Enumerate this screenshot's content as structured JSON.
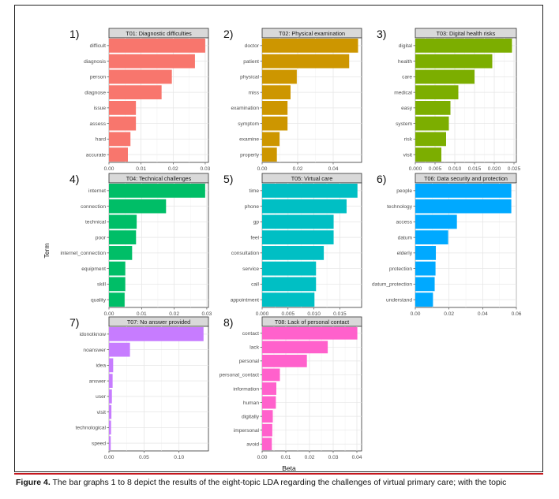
{
  "axis": {
    "x_title": "Beta",
    "y_title": "Term"
  },
  "caption": {
    "label": "Figure 4.",
    "text": "The bar graphs 1 to 8 depict the results of the eight-topic LDA regarding the challenges of virtual primary care; with the topic"
  },
  "chart_data": [
    {
      "type": "bar",
      "orientation": "horizontal",
      "panel_number": "1)",
      "title": "T01: Diagnostic difficulties",
      "color": "#F8766D",
      "categories": [
        "difficult",
        "diagnosis",
        "person",
        "diagnose",
        "issue",
        "assess",
        "hard",
        "accurate"
      ],
      "values": [
        0.03,
        0.0268,
        0.0196,
        0.0164,
        0.0084,
        0.0084,
        0.0067,
        0.0059
      ],
      "xlim": [
        0,
        0.031
      ],
      "ticks": [
        0,
        0.01,
        0.02,
        0.03
      ],
      "tick_labels": [
        "0.00",
        "0.01",
        "0.02",
        "0.03"
      ],
      "grid": true
    },
    {
      "type": "bar",
      "orientation": "horizontal",
      "panel_number": "2)",
      "title": "T02: Physical examination",
      "color": "#CD9600",
      "categories": [
        "doctor",
        "patient",
        "physical",
        "miss",
        "examination",
        "symptom",
        "examine",
        "properly"
      ],
      "values": [
        0.054,
        0.049,
        0.0195,
        0.016,
        0.0143,
        0.0143,
        0.0098,
        0.0083
      ],
      "xlim": [
        0,
        0.056
      ],
      "ticks": [
        0,
        0.02,
        0.04
      ],
      "tick_labels": [
        "0.00",
        "0.02",
        "0.04"
      ],
      "grid": true
    },
    {
      "type": "bar",
      "orientation": "horizontal",
      "panel_number": "3)",
      "title": "T03: Digital health risks",
      "color": "#7CAE00",
      "categories": [
        "digital",
        "health",
        "care",
        "medical",
        "easy",
        "system",
        "risk",
        "visit"
      ],
      "values": [
        0.0245,
        0.0195,
        0.015,
        0.0109,
        0.0089,
        0.0085,
        0.0078,
        0.0066
      ],
      "xlim": [
        0,
        0.0256
      ],
      "ticks": [
        0,
        0.005,
        0.01,
        0.015,
        0.02,
        0.025
      ],
      "tick_labels": [
        "0.000",
        "0.005",
        "0.010",
        "0.015",
        "0.020",
        "0.025"
      ],
      "grid": true
    },
    {
      "type": "bar",
      "orientation": "horizontal",
      "panel_number": "4)",
      "title": "T04: Technical challenges",
      "color": "#00BE67",
      "categories": [
        "internet",
        "connection",
        "technical",
        "poor",
        "internet_connection",
        "equipment",
        "skill",
        "quality"
      ],
      "values": [
        0.0295,
        0.0175,
        0.0085,
        0.0083,
        0.0071,
        0.005,
        0.005,
        0.0048
      ],
      "xlim": [
        0,
        0.0305
      ],
      "ticks": [
        0,
        0.01,
        0.02,
        0.03
      ],
      "tick_labels": [
        "0.00",
        "0.01",
        "0.02",
        "0.03"
      ],
      "grid": true
    },
    {
      "type": "bar",
      "orientation": "horizontal",
      "panel_number": "5)",
      "title": "T05: Virtual care",
      "color": "#00BFC4",
      "categories": [
        "time",
        "phone",
        "gp",
        "feel",
        "consultation",
        "service",
        "call",
        "appointment"
      ],
      "values": [
        0.0184,
        0.0163,
        0.0138,
        0.0138,
        0.0119,
        0.0104,
        0.0104,
        0.0101
      ],
      "xlim": [
        0,
        0.0192
      ],
      "ticks": [
        0,
        0.005,
        0.01,
        0.015
      ],
      "tick_labels": [
        "0.000",
        "0.005",
        "0.010",
        "0.015"
      ],
      "grid": true
    },
    {
      "type": "bar",
      "orientation": "horizontal",
      "panel_number": "6)",
      "title": "T06: Data security and protection",
      "color": "#00A9FF",
      "categories": [
        "people",
        "technology",
        "access",
        "datum",
        "elderly",
        "protection",
        "datum_protection",
        "understand"
      ],
      "values": [
        0.057,
        0.057,
        0.0247,
        0.0195,
        0.0122,
        0.012,
        0.0115,
        0.0105
      ],
      "xlim": [
        0,
        0.06
      ],
      "ticks": [
        0,
        0.02,
        0.04,
        0.06
      ],
      "tick_labels": [
        "0.00",
        "0.02",
        "0.04",
        "0.06"
      ],
      "grid": true
    },
    {
      "type": "bar",
      "orientation": "horizontal",
      "panel_number": "7)",
      "title": "T07: No answer provided",
      "color": "#C77CFF",
      "categories": [
        "idonotknow",
        "noanswer",
        "idea",
        "answer",
        "user",
        "visit",
        "technological",
        "speed"
      ],
      "values": [
        0.135,
        0.03,
        0.006,
        0.0052,
        0.0042,
        0.0035,
        0.003,
        0.0025
      ],
      "xlim": [
        0,
        0.142
      ],
      "ticks": [
        0,
        0.05,
        0.1
      ],
      "tick_labels": [
        "0.00",
        "0.05",
        "0.10"
      ],
      "grid": true
    },
    {
      "type": "bar",
      "orientation": "horizontal",
      "panel_number": "8)",
      "title": "T08: Lack of personal contact",
      "color": "#FF61CC",
      "categories": [
        "contact",
        "lack",
        "personal",
        "personal_contact",
        "information",
        "human",
        "digitally",
        "impersonal",
        "avoid"
      ],
      "values": [
        0.0402,
        0.0277,
        0.0189,
        0.0075,
        0.006,
        0.0058,
        0.0045,
        0.0043,
        0.0041
      ],
      "xlim": [
        0,
        0.042
      ],
      "ticks": [
        0,
        0.01,
        0.02,
        0.03,
        0.04
      ],
      "tick_labels": [
        "0.00",
        "0.01",
        "0.02",
        "0.03",
        "0.04"
      ],
      "grid": true
    }
  ]
}
